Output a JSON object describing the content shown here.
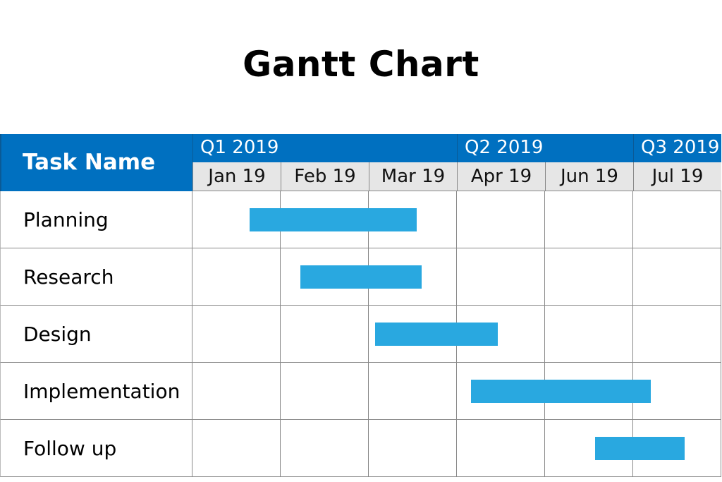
{
  "chart_data": {
    "type": "gantt",
    "title": "Gantt Chart",
    "task_header": "Task Name",
    "quarters": [
      {
        "label": "Q1 2019",
        "start": 0,
        "end": 3
      },
      {
        "label": "Q2 2019",
        "start": 3,
        "end": 5
      },
      {
        "label": "Q3 2019",
        "start": 5,
        "end": 6
      }
    ],
    "categories": [
      "Jan 19",
      "Feb 19",
      "Mar 19",
      "Apr 19",
      "Jun 19",
      "Jul 19"
    ],
    "tasks": [
      {
        "name": "Planning",
        "start": 0.65,
        "end": 2.54
      },
      {
        "name": "Research",
        "start": 1.22,
        "end": 2.6
      },
      {
        "name": "Design",
        "start": 2.07,
        "end": 3.46
      },
      {
        "name": "Implementation",
        "start": 3.16,
        "end": 5.2
      },
      {
        "name": "Follow up",
        "start": 4.57,
        "end": 5.58
      }
    ],
    "bar_color": "#29a8e0",
    "header_color": "#0070c0",
    "subheader_color": "#e6e6e6",
    "grid": true
  }
}
